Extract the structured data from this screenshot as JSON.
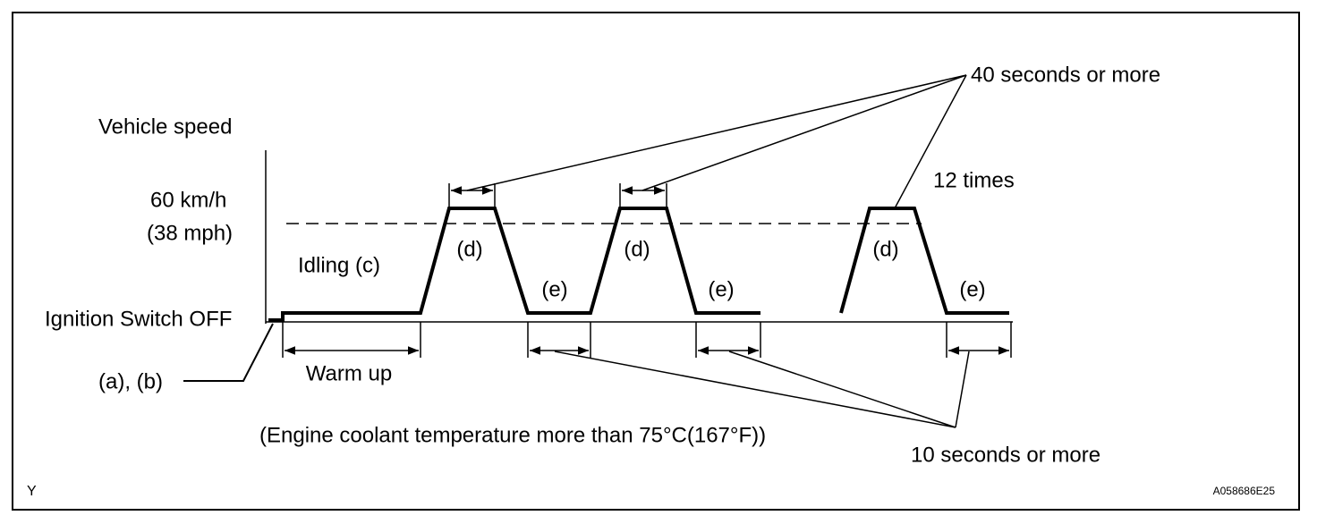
{
  "leaders": {
    "top": "40 seconds or more",
    "bottom": "10 seconds or more"
  },
  "axis": {
    "title": "Vehicle speed",
    "speed": [
      "60 km/h",
      "(38 mph)"
    ],
    "start": "Ignition Switch OFF"
  },
  "phases": {
    "idling": "Idling (c)",
    "repeat": "12 times",
    "warm_up": "Warm up",
    "d": [
      "(d)",
      "(d)",
      "(d)"
    ],
    "e": [
      "(e)",
      "(e)",
      "(e)"
    ]
  },
  "steps": "(a), (b)",
  "condition": "(Engine coolant temperature more than 75°C(167°F))",
  "corner": "Y",
  "code": "A058686E25"
}
